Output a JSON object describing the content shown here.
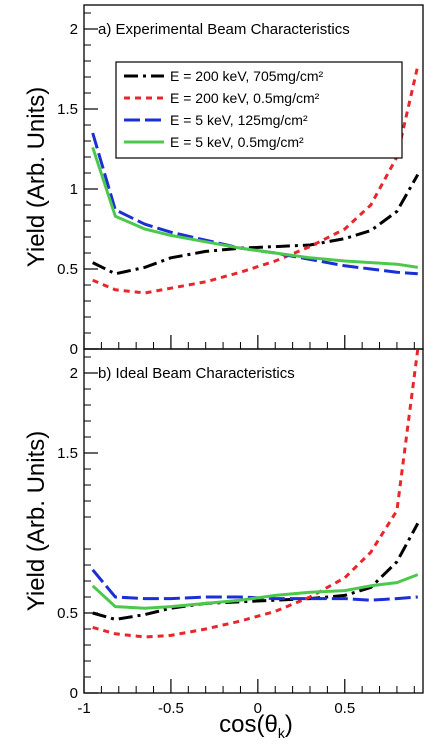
{
  "chart_data": [
    {
      "panel": "a",
      "type": "line",
      "title": "a)  Experimental Beam Characteristics",
      "xlabel": "",
      "ylabel": "Yield (Arb. Units)",
      "xlim": [
        -1.0,
        0.95
      ],
      "ylim": [
        0,
        2.15
      ],
      "yticks": [
        0,
        0.5,
        1,
        1.5,
        2
      ],
      "ytick_labels": [
        "0",
        "0.5",
        "1",
        "1.5",
        "2"
      ],
      "legend": "top-right",
      "grid": false,
      "series": [
        {
          "name": "E = 200 keV, 705mg/cm²",
          "color": "#000000",
          "dash": "dashdot",
          "x": [
            -0.95,
            -0.82,
            -0.65,
            -0.5,
            -0.3,
            -0.1,
            0.1,
            0.3,
            0.5,
            0.65,
            0.8,
            0.92
          ],
          "y": [
            0.54,
            0.47,
            0.51,
            0.57,
            0.61,
            0.63,
            0.64,
            0.65,
            0.69,
            0.74,
            0.86,
            1.09
          ]
        },
        {
          "name": "E = 200 keV, 0.5mg/cm²",
          "color": "#e8262b",
          "dash": "dotted",
          "x": [
            -0.95,
            -0.82,
            -0.65,
            -0.5,
            -0.3,
            -0.1,
            0.1,
            0.3,
            0.5,
            0.65,
            0.8,
            0.92
          ],
          "y": [
            0.43,
            0.37,
            0.35,
            0.38,
            0.42,
            0.48,
            0.55,
            0.64,
            0.75,
            0.9,
            1.2,
            1.77
          ]
        },
        {
          "name": "E = 5 keV, 125mg/cm²",
          "color": "#1a2fd6",
          "dash": "longdash",
          "x": [
            -0.95,
            -0.82,
            -0.65,
            -0.5,
            -0.3,
            -0.1,
            0.1,
            0.3,
            0.5,
            0.65,
            0.8,
            0.92
          ],
          "y": [
            1.35,
            0.87,
            0.78,
            0.73,
            0.68,
            0.63,
            0.6,
            0.56,
            0.52,
            0.5,
            0.48,
            0.47
          ]
        },
        {
          "name": "E = 5 keV, 0.5mg/cm²",
          "color": "#4cc94c",
          "dash": "solid",
          "x": [
            -0.95,
            -0.82,
            -0.65,
            -0.5,
            -0.3,
            -0.1,
            0.1,
            0.3,
            0.5,
            0.65,
            0.8,
            0.92
          ],
          "y": [
            1.26,
            0.83,
            0.75,
            0.71,
            0.67,
            0.63,
            0.6,
            0.57,
            0.55,
            0.54,
            0.53,
            0.51
          ]
        }
      ]
    },
    {
      "panel": "b",
      "type": "line",
      "title": "b)  Ideal Beam Characteristics",
      "xlabel": "cos(θk)",
      "xlabel_base": "cos(θ",
      "xlabel_sub": "k",
      "xlabel_close": ")",
      "ylabel": "Yield (Arb. Units)",
      "xlim": [
        -1.0,
        0.95
      ],
      "ylim": [
        0,
        2.15
      ],
      "yticks": [
        0,
        0.5,
        1.5,
        2
      ],
      "ytick_labels": [
        "0",
        "0.5",
        "1.5",
        "2"
      ],
      "xticks": [
        -1,
        -0.5,
        0,
        0.5
      ],
      "xtick_labels": [
        "-1",
        "-0.5",
        "0",
        "0.5"
      ],
      "grid": false,
      "series": [
        {
          "name": "E = 200 keV, 705mg/cm²",
          "color": "#000000",
          "dash": "dashdot",
          "x": [
            -0.95,
            -0.82,
            -0.65,
            -0.5,
            -0.3,
            -0.1,
            0.1,
            0.3,
            0.5,
            0.65,
            0.8,
            0.92
          ],
          "y": [
            0.5,
            0.46,
            0.49,
            0.53,
            0.56,
            0.57,
            0.58,
            0.59,
            0.61,
            0.66,
            0.82,
            1.06
          ]
        },
        {
          "name": "E = 200 keV, 0.5mg/cm²",
          "color": "#e8262b",
          "dash": "dotted",
          "x": [
            -0.95,
            -0.82,
            -0.65,
            -0.5,
            -0.3,
            -0.1,
            0.1,
            0.3,
            0.5,
            0.65,
            0.8,
            0.92
          ],
          "y": [
            0.41,
            0.37,
            0.35,
            0.36,
            0.4,
            0.45,
            0.51,
            0.6,
            0.72,
            0.88,
            1.14,
            2.15
          ]
        },
        {
          "name": "E = 5 keV, 125mg/cm²",
          "color": "#1a2fd6",
          "dash": "longdash",
          "x": [
            -0.95,
            -0.82,
            -0.65,
            -0.5,
            -0.3,
            -0.1,
            0.1,
            0.3,
            0.5,
            0.65,
            0.8,
            0.92
          ],
          "y": [
            0.77,
            0.6,
            0.59,
            0.59,
            0.6,
            0.6,
            0.59,
            0.59,
            0.59,
            0.58,
            0.59,
            0.6
          ]
        },
        {
          "name": "E = 5 keV, 0.5mg/cm²",
          "color": "#4cc94c",
          "dash": "solid",
          "x": [
            -0.95,
            -0.82,
            -0.65,
            -0.5,
            -0.3,
            -0.1,
            0.1,
            0.3,
            0.5,
            0.65,
            0.8,
            0.92
          ],
          "y": [
            0.67,
            0.54,
            0.53,
            0.54,
            0.56,
            0.58,
            0.61,
            0.63,
            0.64,
            0.67,
            0.69,
            0.74
          ]
        }
      ]
    }
  ]
}
